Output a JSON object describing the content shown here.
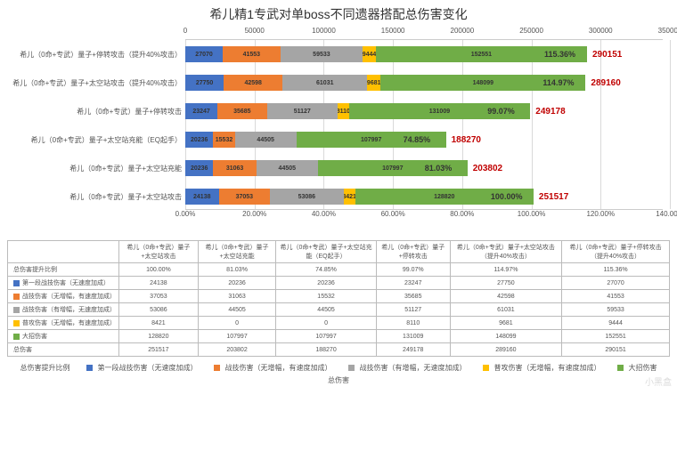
{
  "title": "希儿精1专武对单boss不同遗器搭配总伤害变化",
  "colors": {
    "s1": "#4472c4",
    "s2": "#ed7d31",
    "s3": "#a5a5a5",
    "s4": "#ffc000",
    "s5": "#70ad47",
    "total_text": "#c00000",
    "grid": "#d9d9d9"
  },
  "top_axis": {
    "min": 0,
    "max": 350000,
    "step": 50000
  },
  "bot_axis": {
    "min": 0,
    "max": 140,
    "step": 20,
    "suffix": "%"
  },
  "series_names": {
    "pct": "总伤害提升比例",
    "s1": "第一段战技伤害（无速度加成）",
    "s2": "战技伤害（无增幅，有速度加成）",
    "s3": "战技伤害（有增幅，无速度加成）",
    "s4": "普攻伤害（无增幅，有速度加成）",
    "s5": "大招伤害",
    "tot": "总伤害"
  },
  "bars": [
    {
      "label": "希儿（0命+专武）量子+停转攻击（提升40%攻击）",
      "s1": 27070,
      "s2": 41553,
      "s3": 59533,
      "s4": 9444,
      "s5": 152551,
      "pct": "115.36%",
      "total": 290151
    },
    {
      "label": "希儿（0命+专武）量子+太空站攻击（提升40%攻击）",
      "s1": 27750,
      "s2": 42598,
      "s3": 61031,
      "s4": 9681,
      "s5": 148099,
      "pct": "114.97%",
      "total": 289160
    },
    {
      "label": "希儿（0命+专武）量子+停转攻击",
      "s1": 23247,
      "s2": 35685,
      "s3": 51127,
      "s4": 8110,
      "s5": 131009,
      "pct": "99.07%",
      "total": 249178
    },
    {
      "label": "希儿（0命+专武）量子+太空站充能（EQ起手）",
      "s1": 20236,
      "s2": 15532,
      "s3": 44505,
      "s4": 0,
      "s5": 107997,
      "pct": "74.85%",
      "total": 188270
    },
    {
      "label": "希儿（0命+专武）量子+太空站充能",
      "s1": 20236,
      "s2": 31063,
      "s3": 44505,
      "s4": 0,
      "s5": 107997,
      "pct": "81.03%",
      "total": 203802
    },
    {
      "label": "希儿（0命+专武）量子+太空站攻击",
      "s1": 24138,
      "s2": 37053,
      "s3": 53086,
      "s4": 8421,
      "s5": 128820,
      "pct": "100.00%",
      "total": 251517
    }
  ],
  "table": {
    "cols": [
      "希儿（0命+专武）量子+太空站攻击",
      "希儿（0命+专武）量子+太空站充能",
      "希儿（0命+专武）量子+太空站充能（EQ起手）",
      "希儿（0命+专武）量子+停转攻击",
      "希儿（0命+专武）量子+太空站攻击（提升40%攻击）",
      "希儿（0命+专武）量子+停转攻击（提升40%攻击）"
    ],
    "rows": [
      {
        "name": "pct",
        "vals": [
          "100.00%",
          "81.03%",
          "74.85%",
          "99.07%",
          "114.97%",
          "115.36%"
        ]
      },
      {
        "name": "s1",
        "vals": [
          "24138",
          "20236",
          "20236",
          "23247",
          "27750",
          "27070"
        ]
      },
      {
        "name": "s2",
        "vals": [
          "37053",
          "31063",
          "15532",
          "35685",
          "42598",
          "41553"
        ]
      },
      {
        "name": "s3",
        "vals": [
          "53086",
          "44505",
          "44505",
          "51127",
          "61031",
          "59533"
        ]
      },
      {
        "name": "s4",
        "vals": [
          "8421",
          "0",
          "0",
          "8110",
          "9681",
          "9444"
        ]
      },
      {
        "name": "s5",
        "vals": [
          "128820",
          "107997",
          "107997",
          "131009",
          "148099",
          "152551"
        ]
      },
      {
        "name": "tot",
        "vals": [
          "251517",
          "203802",
          "188270",
          "249178",
          "289160",
          "290151"
        ]
      }
    ]
  },
  "watermark": "小黑盒"
}
